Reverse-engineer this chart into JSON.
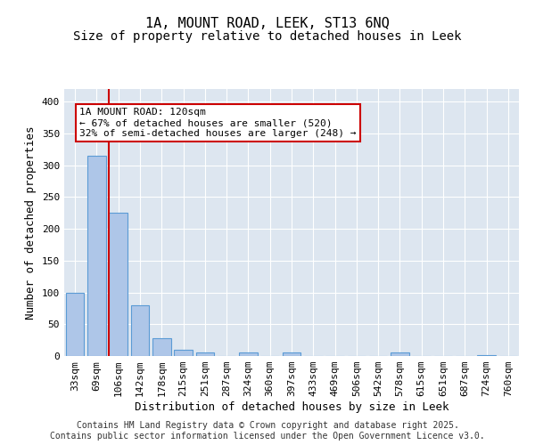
{
  "title1": "1A, MOUNT ROAD, LEEK, ST13 6NQ",
  "title2": "Size of property relative to detached houses in Leek",
  "xlabel": "Distribution of detached houses by size in Leek",
  "ylabel": "Number of detached properties",
  "bins": [
    "33sqm",
    "69sqm",
    "106sqm",
    "142sqm",
    "178sqm",
    "215sqm",
    "251sqm",
    "287sqm",
    "324sqm",
    "360sqm",
    "397sqm",
    "433sqm",
    "469sqm",
    "506sqm",
    "542sqm",
    "578sqm",
    "615sqm",
    "651sqm",
    "687sqm",
    "724sqm",
    "760sqm"
  ],
  "bar_values": [
    100,
    315,
    225,
    80,
    28,
    10,
    5,
    0,
    5,
    0,
    5,
    0,
    0,
    0,
    0,
    5,
    0,
    0,
    0,
    2,
    0
  ],
  "bar_color": "#aec6e8",
  "bar_edgecolor": "#5b9bd5",
  "red_line_x": 1.57,
  "red_line_color": "#cc0000",
  "annotation_text": "1A MOUNT ROAD: 120sqm\n← 67% of detached houses are smaller (520)\n32% of semi-detached houses are larger (248) →",
  "annotation_box_color": "#ffffff",
  "annotation_box_edgecolor": "#cc0000",
  "ylim": [
    0,
    420
  ],
  "yticks": [
    0,
    50,
    100,
    150,
    200,
    250,
    300,
    350,
    400
  ],
  "background_color": "#dde6f0",
  "footer_text": "Contains HM Land Registry data © Crown copyright and database right 2025.\nContains public sector information licensed under the Open Government Licence v3.0.",
  "title1_fontsize": 11,
  "title2_fontsize": 10,
  "xlabel_fontsize": 9,
  "ylabel_fontsize": 9,
  "tick_fontsize": 8,
  "annotation_fontsize": 8,
  "footer_fontsize": 7
}
